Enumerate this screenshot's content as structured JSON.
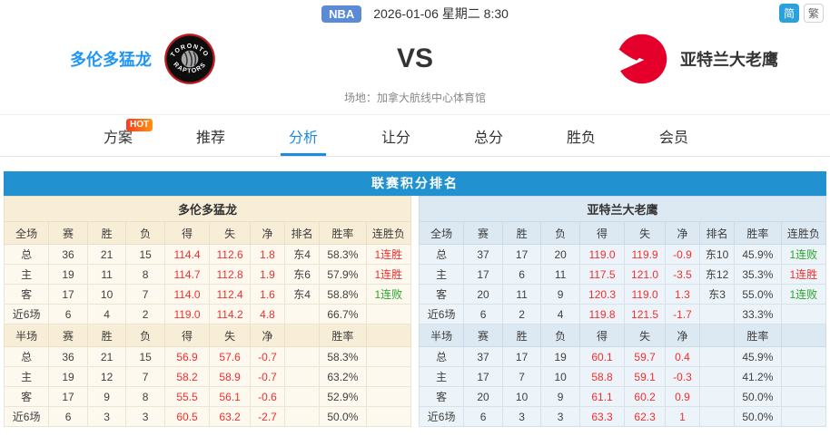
{
  "topbar": {
    "league_badge": "NBA",
    "datetime": "2026-01-06 星期二 8:30",
    "lang_simplified": "简",
    "lang_traditional": "繁"
  },
  "match": {
    "home_team": "多伦多猛龙",
    "away_team": "亚特兰大老鹰",
    "vs": "VS",
    "venue": "场地：加拿大航线中心体育馆"
  },
  "tabs": [
    {
      "label": "方案",
      "badge": "HOT"
    },
    {
      "label": "推荐"
    },
    {
      "label": "分析",
      "active": true
    },
    {
      "label": "让分"
    },
    {
      "label": "总分"
    },
    {
      "label": "胜负"
    },
    {
      "label": "会员"
    }
  ],
  "section_title": "联赛积分排名",
  "tables": {
    "left": {
      "team": "多伦多猛龙",
      "full_header": [
        "全场",
        "赛",
        "胜",
        "负",
        "得",
        "失",
        "净",
        "排名",
        "胜率",
        "连胜负"
      ],
      "full_rows": [
        [
          "总",
          "36",
          "21",
          "15",
          "114.4",
          "112.6",
          "1.8",
          "东4",
          "58.3%",
          "1连胜"
        ],
        [
          "主",
          "19",
          "11",
          "8",
          "114.7",
          "112.8",
          "1.9",
          "东6",
          "57.9%",
          "1连胜"
        ],
        [
          "客",
          "17",
          "10",
          "7",
          "114.0",
          "112.4",
          "1.6",
          "东4",
          "58.8%",
          "1连败"
        ],
        [
          "近6场",
          "6",
          "4",
          "2",
          "119.0",
          "114.2",
          "4.8",
          "",
          "66.7%",
          ""
        ]
      ],
      "half_header": [
        "半场",
        "赛",
        "胜",
        "负",
        "得",
        "失",
        "净",
        "",
        "胜率",
        ""
      ],
      "half_rows": [
        [
          "总",
          "36",
          "21",
          "15",
          "56.9",
          "57.6",
          "-0.7",
          "",
          "58.3%",
          ""
        ],
        [
          "主",
          "19",
          "12",
          "7",
          "58.2",
          "58.9",
          "-0.7",
          "",
          "63.2%",
          ""
        ],
        [
          "客",
          "17",
          "9",
          "8",
          "55.5",
          "56.1",
          "-0.6",
          "",
          "52.9%",
          ""
        ],
        [
          "近6场",
          "6",
          "3",
          "3",
          "60.5",
          "63.2",
          "-2.7",
          "",
          "50.0%",
          ""
        ]
      ]
    },
    "right": {
      "team": "亚特兰大老鹰",
      "full_header": [
        "全场",
        "赛",
        "胜",
        "负",
        "得",
        "失",
        "净",
        "排名",
        "胜率",
        "连胜负"
      ],
      "full_rows": [
        [
          "总",
          "37",
          "17",
          "20",
          "119.0",
          "119.9",
          "-0.9",
          "东10",
          "45.9%",
          "1连败"
        ],
        [
          "主",
          "17",
          "6",
          "11",
          "117.5",
          "121.0",
          "-3.5",
          "东12",
          "35.3%",
          "1连胜"
        ],
        [
          "客",
          "20",
          "11",
          "9",
          "120.3",
          "119.0",
          "1.3",
          "东3",
          "55.0%",
          "1连败"
        ],
        [
          "近6场",
          "6",
          "2",
          "4",
          "119.8",
          "121.5",
          "-1.7",
          "",
          "33.3%",
          ""
        ]
      ],
      "half_header": [
        "半场",
        "赛",
        "胜",
        "负",
        "得",
        "失",
        "净",
        "",
        "胜率",
        ""
      ],
      "half_rows": [
        [
          "总",
          "37",
          "17",
          "19",
          "60.1",
          "59.7",
          "0.4",
          "",
          "45.9%",
          ""
        ],
        [
          "主",
          "17",
          "7",
          "10",
          "58.8",
          "59.1",
          "-0.3",
          "",
          "41.2%",
          ""
        ],
        [
          "客",
          "20",
          "10",
          "9",
          "61.1",
          "60.2",
          "0.9",
          "",
          "50.0%",
          ""
        ],
        [
          "近6场",
          "6",
          "3",
          "3",
          "63.3",
          "62.3",
          "1",
          "",
          "50.0%",
          ""
        ]
      ]
    }
  },
  "colors": {
    "section_bar_blue": "#2191cf",
    "active_tab_blue": "#1b8ce4",
    "nba_badge_blue": "#5b8bd5",
    "lang_active_blue": "#2aa0dd",
    "home_name_blue": "#2196f3",
    "value_red": "#f22e2e",
    "streak_green": "#27a427",
    "raptors_red": "#bd1b21",
    "hawks_red": "#e4002b",
    "left_header_bg": "#f8eed7",
    "left_row_bg": "#fdf9ef",
    "right_header_bg": "#dde9f2",
    "right_row_bg": "#edf4f9",
    "hot_badge_gradient": "#fb3b1e→#ff9410"
  }
}
